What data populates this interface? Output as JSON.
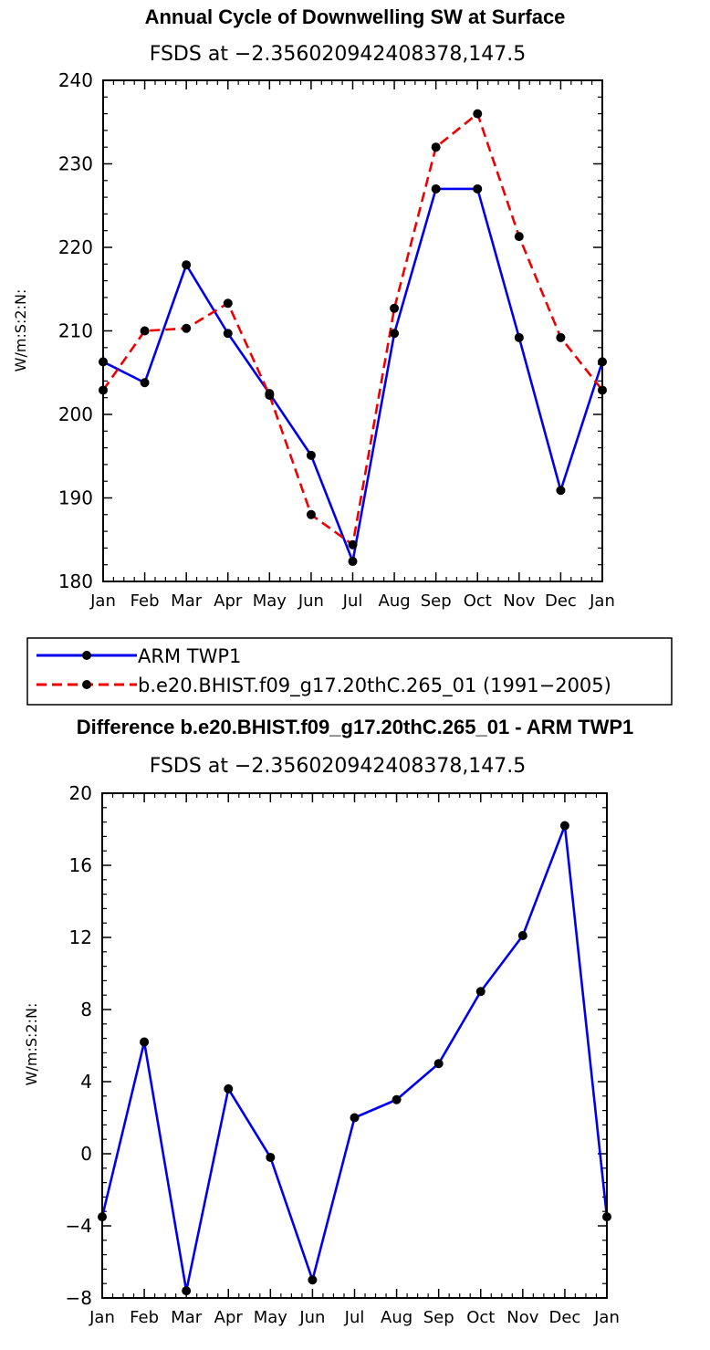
{
  "chart_data": [
    {
      "type": "line",
      "title": "Annual Cycle of Downwelling SW at Surface",
      "subtitle": "FSDS at −2.356020942408378,147.5",
      "xlabel": "",
      "ylabel": "W/m:S:2:N:",
      "categories": [
        "Jan",
        "Feb",
        "Mar",
        "Apr",
        "May",
        "Jun",
        "Jul",
        "Aug",
        "Sep",
        "Oct",
        "Nov",
        "Dec",
        "Jan"
      ],
      "ylim": [
        180,
        240
      ],
      "yticks": [
        "180",
        "190",
        "200",
        "210",
        "220",
        "230",
        "240"
      ],
      "series": [
        {
          "name": "ARM  TWP1",
          "color": "#0000ee",
          "dash": "solid",
          "values": [
            206.3,
            203.8,
            217.9,
            209.7,
            202.5,
            195.1,
            182.4,
            209.7,
            227.0,
            227.0,
            209.2,
            190.9,
            206.3
          ]
        },
        {
          "name": "b.e20.BHIST.f09_g17.20thC.265_01 (1991−2005)",
          "color": "#ee0000",
          "dash": "dashed",
          "values": [
            202.9,
            210.0,
            210.3,
            213.3,
            202.3,
            188.0,
            184.4,
            212.7,
            232.0,
            236.0,
            221.3,
            209.2,
            202.9
          ]
        }
      ],
      "legend": "bottom"
    },
    {
      "type": "line",
      "title": "Difference b.e20.BHIST.f09_g17.20thC.265_01 - ARM TWP1",
      "subtitle": "FSDS at −2.356020942408378,147.5",
      "xlabel": "",
      "ylabel": "W/m:S:2:N:",
      "categories": [
        "Jan",
        "Feb",
        "Mar",
        "Apr",
        "May",
        "Jun",
        "Jul",
        "Aug",
        "Sep",
        "Oct",
        "Nov",
        "Dec",
        "Jan"
      ],
      "ylim": [
        -8,
        20
      ],
      "yticks": [
        "−8",
        "−4",
        "0",
        "4",
        "8",
        "12",
        "16",
        "20"
      ],
      "series": [
        {
          "name": "Difference",
          "color": "#0000ee",
          "dash": "solid",
          "values": [
            -3.5,
            6.2,
            -7.6,
            3.6,
            -0.2,
            -7.0,
            2.0,
            3.0,
            5.0,
            9.0,
            12.1,
            18.2,
            -3.5
          ]
        }
      ]
    }
  ]
}
